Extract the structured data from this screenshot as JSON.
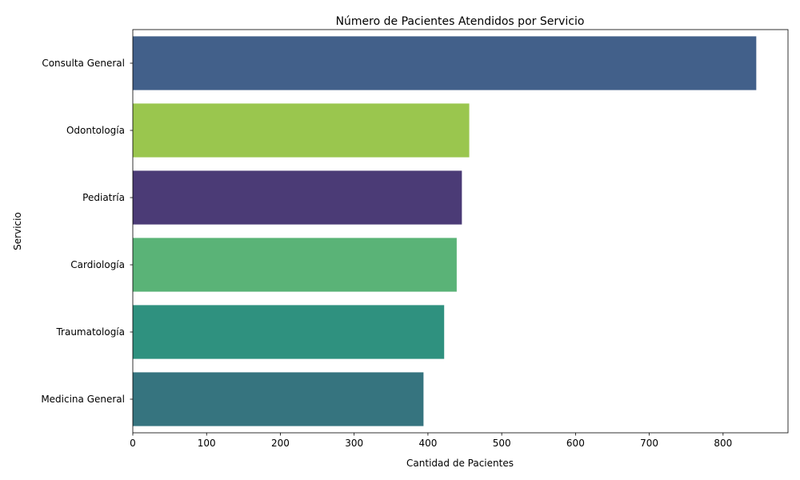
{
  "chart_data": {
    "type": "bar",
    "orientation": "horizontal",
    "title": "Número de Pacientes Atendidos por Servicio",
    "xlabel": "Cantidad de Pacientes",
    "ylabel": "Servicio",
    "categories": [
      "Consulta General",
      "Odontología",
      "Pediatría",
      "Cardiología",
      "Traumatología",
      "Medicina General"
    ],
    "values": [
      845,
      456,
      446,
      439,
      422,
      394
    ],
    "colors": [
      "#42608a",
      "#9ac64e",
      "#4b3b76",
      "#5ab377",
      "#2f917f",
      "#36747f"
    ],
    "x_ticks": [
      "0",
      "100",
      "200",
      "300",
      "400",
      "500",
      "600",
      "700",
      "800"
    ],
    "xlim": [
      0,
      888
    ],
    "grid": false,
    "legend": "none"
  }
}
